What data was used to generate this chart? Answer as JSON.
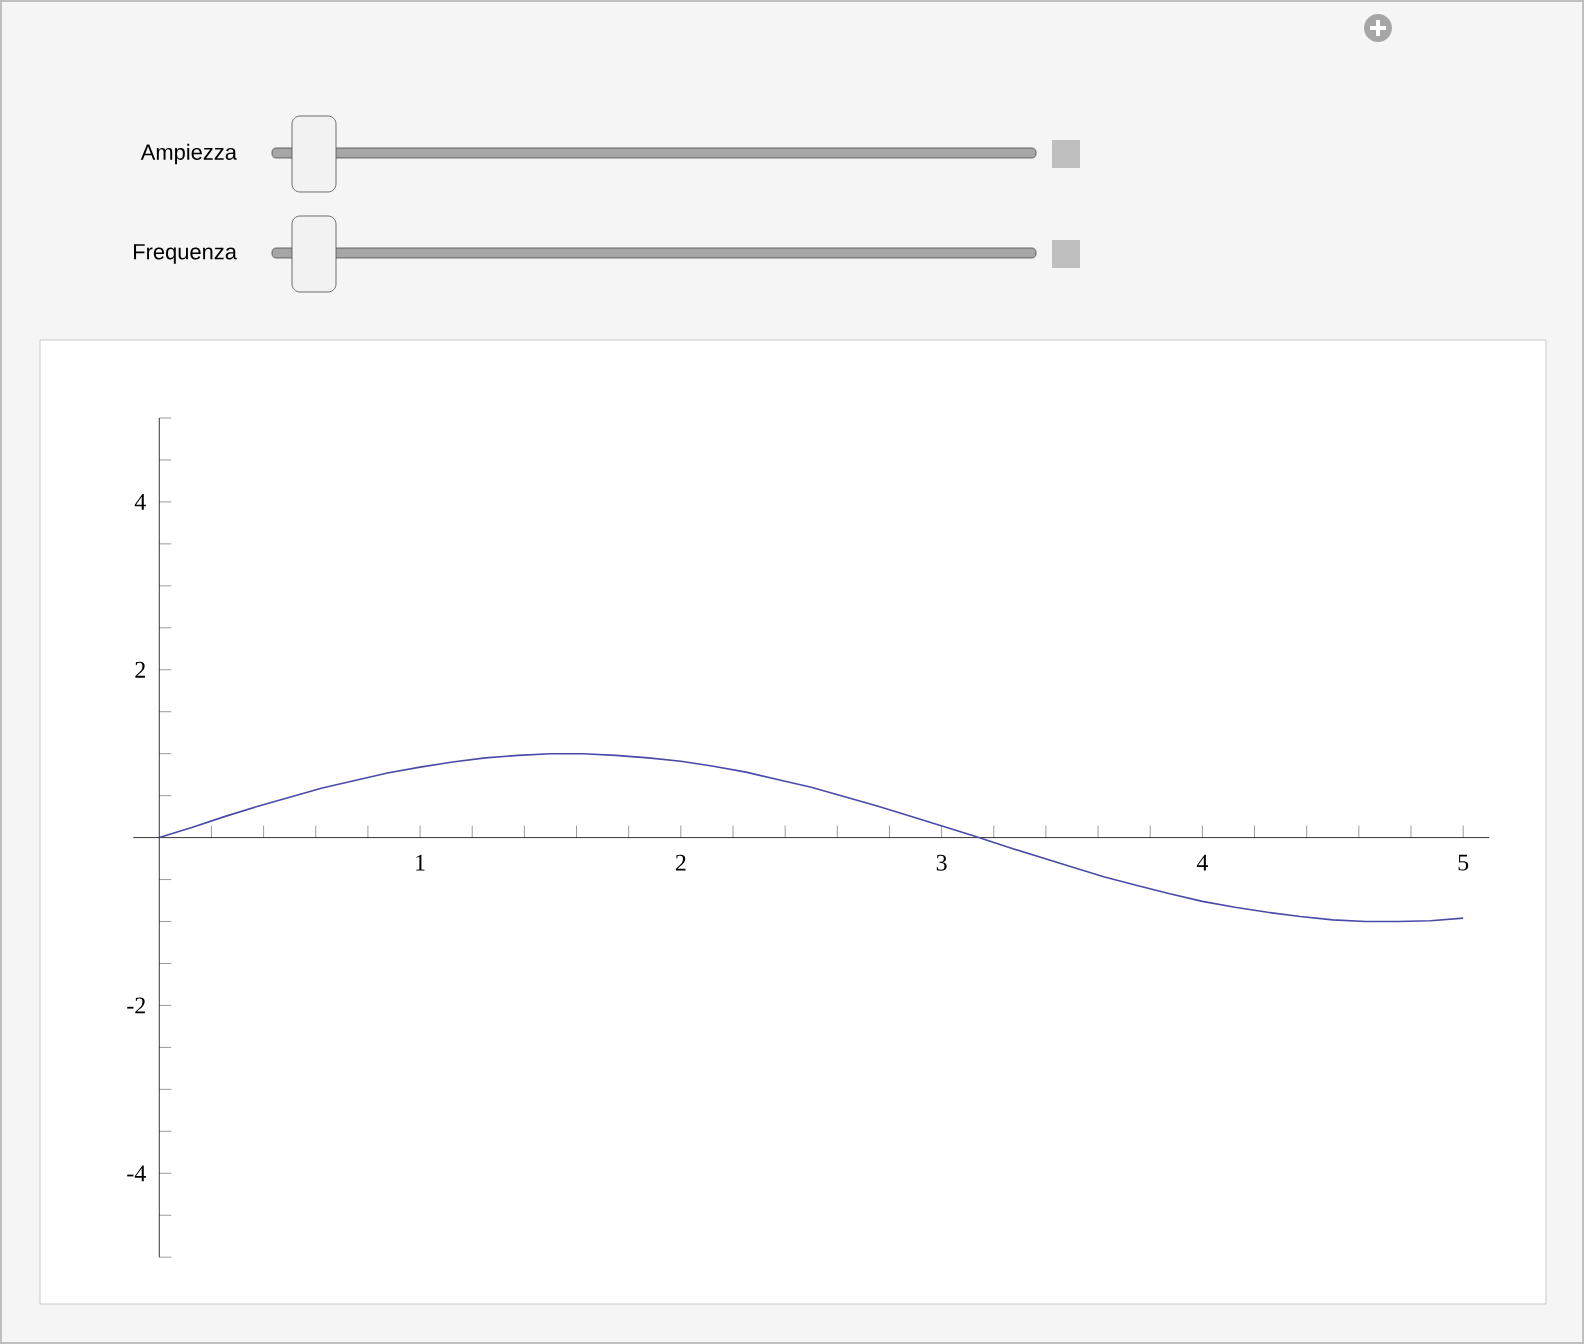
{
  "chart_data": {
    "type": "line",
    "annotations": [
      "Ampiezza",
      "Frequenza"
    ],
    "x": [
      0,
      0.125,
      0.25,
      0.375,
      0.5,
      0.625,
      0.75,
      0.875,
      1,
      1.125,
      1.25,
      1.375,
      1.5,
      1.625,
      1.75,
      1.875,
      2,
      2.125,
      2.25,
      2.375,
      2.5,
      2.625,
      2.75,
      2.875,
      3,
      3.125,
      3.25,
      3.375,
      3.5,
      3.625,
      3.75,
      3.875,
      4,
      4.125,
      4.25,
      4.375,
      4.5,
      4.625,
      4.75,
      4.875,
      5
    ],
    "series": [
      {
        "color": "#4a4aa8",
        "values": [
          0,
          0.12,
          0.25,
          0.37,
          0.48,
          0.59,
          0.68,
          0.77,
          0.84,
          0.9,
          0.95,
          0.98,
          1.0,
          1.0,
          0.98,
          0.95,
          0.91,
          0.85,
          0.78,
          0.69,
          0.6,
          0.49,
          0.38,
          0.26,
          0.14,
          0.02,
          -0.11,
          -0.23,
          -0.35,
          -0.47,
          -0.57,
          -0.67,
          -0.76,
          -0.83,
          -0.89,
          -0.94,
          -0.98,
          -1.0,
          -1.0,
          -0.99,
          -0.96
        ]
      }
    ],
    "xlim": [
      -0.1,
      5.1
    ],
    "ylim": [
      -5,
      5
    ],
    "xticks": [
      {
        "value": 0.2,
        "label": null
      },
      {
        "value": 0.4,
        "label": null
      },
      {
        "value": 0.6,
        "label": null
      },
      {
        "value": 0.8,
        "label": null
      },
      1,
      {
        "value": 1.2,
        "label": null
      },
      {
        "value": 1.4,
        "label": null
      },
      {
        "value": 1.6,
        "label": null
      },
      {
        "value": 1.8,
        "label": null
      },
      2,
      {
        "value": 2.2,
        "label": null
      },
      {
        "value": 2.4,
        "label": null
      },
      {
        "value": 2.6,
        "label": null
      },
      {
        "value": 2.8,
        "label": null
      },
      3,
      {
        "value": 3.2,
        "label": null
      },
      {
        "value": 3.4,
        "label": null
      },
      {
        "value": 3.6,
        "label": null
      },
      {
        "value": 3.8,
        "label": null
      },
      4,
      {
        "value": 4.2,
        "label": null
      },
      {
        "value": 4.4,
        "label": null
      },
      {
        "value": 4.6,
        "label": null
      },
      {
        "value": 4.8,
        "label": null
      },
      5
    ],
    "yticks": [
      {
        "value": -5,
        "label": null
      },
      {
        "value": -4.5,
        "label": null
      },
      -4,
      {
        "value": -3.5,
        "label": null
      },
      {
        "value": -3,
        "label": null
      },
      {
        "value": -2.5,
        "label": null
      },
      -2,
      {
        "value": -1.5,
        "label": null
      },
      {
        "value": -1,
        "label": null
      },
      {
        "value": -0.5,
        "label": null
      },
      {
        "value": 0.5,
        "label": null
      },
      {
        "value": 1,
        "label": null
      },
      {
        "value": 1.5,
        "label": null
      },
      2,
      {
        "value": 2.5,
        "label": null
      },
      {
        "value": 3,
        "label": null
      },
      {
        "value": 3.5,
        "label": null
      },
      4,
      {
        "value": 4.5,
        "label": null
      },
      {
        "value": 5,
        "label": null
      }
    ],
    "grid": false,
    "marker": "none",
    "line_style": "solid",
    "legend": false
  }
}
